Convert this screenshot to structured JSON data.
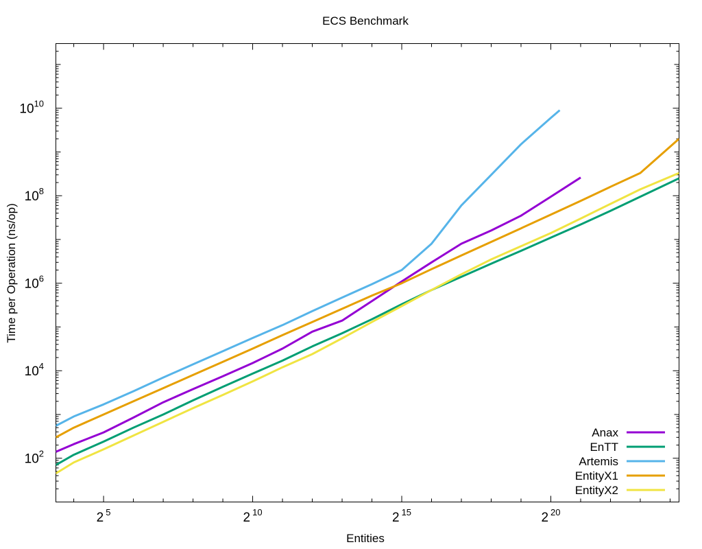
{
  "chart_data": {
    "type": "line",
    "title": "ECS Benchmark",
    "xlabel": "Entities",
    "ylabel": "Time per Operation (ns/op)",
    "x_scale": "log2",
    "y_scale": "log10",
    "xlim": [
      3.4,
      24.3
    ],
    "ylim": [
      10,
      300000000000.0
    ],
    "x_ticks": [
      {
        "base": "2",
        "exp": "5",
        "value": 5
      },
      {
        "base": "2",
        "exp": "10",
        "value": 10
      },
      {
        "base": "2",
        "exp": "15",
        "value": 15
      },
      {
        "base": "2",
        "exp": "20",
        "value": 20
      }
    ],
    "y_ticks": [
      {
        "base": "10",
        "exp": "2",
        "value": 2
      },
      {
        "base": "10",
        "exp": "4",
        "value": 4
      },
      {
        "base": "10",
        "exp": "6",
        "value": 6
      },
      {
        "base": "10",
        "exp": "8",
        "value": 8
      },
      {
        "base": "10",
        "exp": "10",
        "value": 10
      }
    ],
    "legend_position": "bottom-right",
    "grid": false,
    "series": [
      {
        "name": "Anax",
        "color": "#9400d3",
        "points": [
          [
            3.4,
            140
          ],
          [
            4,
            210
          ],
          [
            5,
            390
          ],
          [
            6,
            850
          ],
          [
            7,
            1900
          ],
          [
            8,
            3800
          ],
          [
            9,
            7500
          ],
          [
            10,
            15000
          ],
          [
            11,
            32000
          ],
          [
            12,
            78000
          ],
          [
            13,
            140000
          ],
          [
            14,
            390000
          ],
          [
            15,
            1100000
          ],
          [
            16,
            3000000
          ],
          [
            17,
            8000000
          ],
          [
            18,
            16000000
          ],
          [
            19,
            35000000
          ],
          [
            20,
            95000000
          ],
          [
            21,
            260000000
          ]
        ]
      },
      {
        "name": "EnTT",
        "color": "#009e73",
        "points": [
          [
            3.4,
            70
          ],
          [
            4,
            120
          ],
          [
            5,
            240
          ],
          [
            6,
            500
          ],
          [
            7,
            1000
          ],
          [
            8,
            2100
          ],
          [
            9,
            4300
          ],
          [
            10,
            8600
          ],
          [
            11,
            17000
          ],
          [
            12,
            36000
          ],
          [
            13,
            72000
          ],
          [
            14,
            150000
          ],
          [
            15,
            330000
          ],
          [
            16,
            700000
          ],
          [
            17,
            1400000
          ],
          [
            18,
            2800000
          ],
          [
            19,
            5500000
          ],
          [
            20,
            11000000
          ],
          [
            21,
            22000000
          ],
          [
            22,
            45000000
          ],
          [
            23,
            95000000
          ],
          [
            24.3,
            250000000
          ]
        ]
      },
      {
        "name": "Artemis",
        "color": "#56b4e9",
        "points": [
          [
            3.4,
            550
          ],
          [
            4,
            900
          ],
          [
            5,
            1700
          ],
          [
            6,
            3400
          ],
          [
            7,
            7000
          ],
          [
            8,
            14000
          ],
          [
            9,
            28000
          ],
          [
            10,
            56000
          ],
          [
            11,
            110000
          ],
          [
            12,
            230000
          ],
          [
            13,
            470000
          ],
          [
            14,
            950000
          ],
          [
            15,
            2000000
          ],
          [
            16,
            8000000
          ],
          [
            17,
            60000000
          ],
          [
            18,
            300000000
          ],
          [
            19,
            1500000000
          ],
          [
            20,
            6000000000
          ],
          [
            20.3,
            9000000000
          ]
        ]
      },
      {
        "name": "EntityX1",
        "color": "#e69f00",
        "points": [
          [
            3.4,
            300
          ],
          [
            4,
            500
          ],
          [
            5,
            1000
          ],
          [
            6,
            2000
          ],
          [
            7,
            4000
          ],
          [
            8,
            8000
          ],
          [
            9,
            16000
          ],
          [
            10,
            32000
          ],
          [
            11,
            65000
          ],
          [
            12,
            130000
          ],
          [
            13,
            260000
          ],
          [
            14,
            520000
          ],
          [
            15,
            1000000
          ],
          [
            16,
            2100000
          ],
          [
            17,
            4300000
          ],
          [
            18,
            8800000
          ],
          [
            19,
            18000000
          ],
          [
            20,
            37000000
          ],
          [
            21,
            76000000
          ],
          [
            22,
            160000000
          ],
          [
            23,
            330000000
          ],
          [
            24.3,
            2000000000
          ]
        ]
      },
      {
        "name": "EntityX2",
        "color": "#f0e442",
        "points": [
          [
            3.4,
            45
          ],
          [
            4,
            80
          ],
          [
            5,
            160
          ],
          [
            6,
            330
          ],
          [
            7,
            680
          ],
          [
            8,
            1400
          ],
          [
            9,
            2800
          ],
          [
            10,
            5700
          ],
          [
            11,
            12000
          ],
          [
            12,
            24000
          ],
          [
            13,
            55000
          ],
          [
            14,
            130000
          ],
          [
            15,
            300000
          ],
          [
            16,
            700000
          ],
          [
            17,
            1600000
          ],
          [
            18,
            3500000
          ],
          [
            19,
            7000000
          ],
          [
            20,
            14000000
          ],
          [
            21,
            30000000
          ],
          [
            22,
            65000000
          ],
          [
            23,
            140000000
          ],
          [
            24.3,
            330000000
          ]
        ]
      }
    ]
  }
}
